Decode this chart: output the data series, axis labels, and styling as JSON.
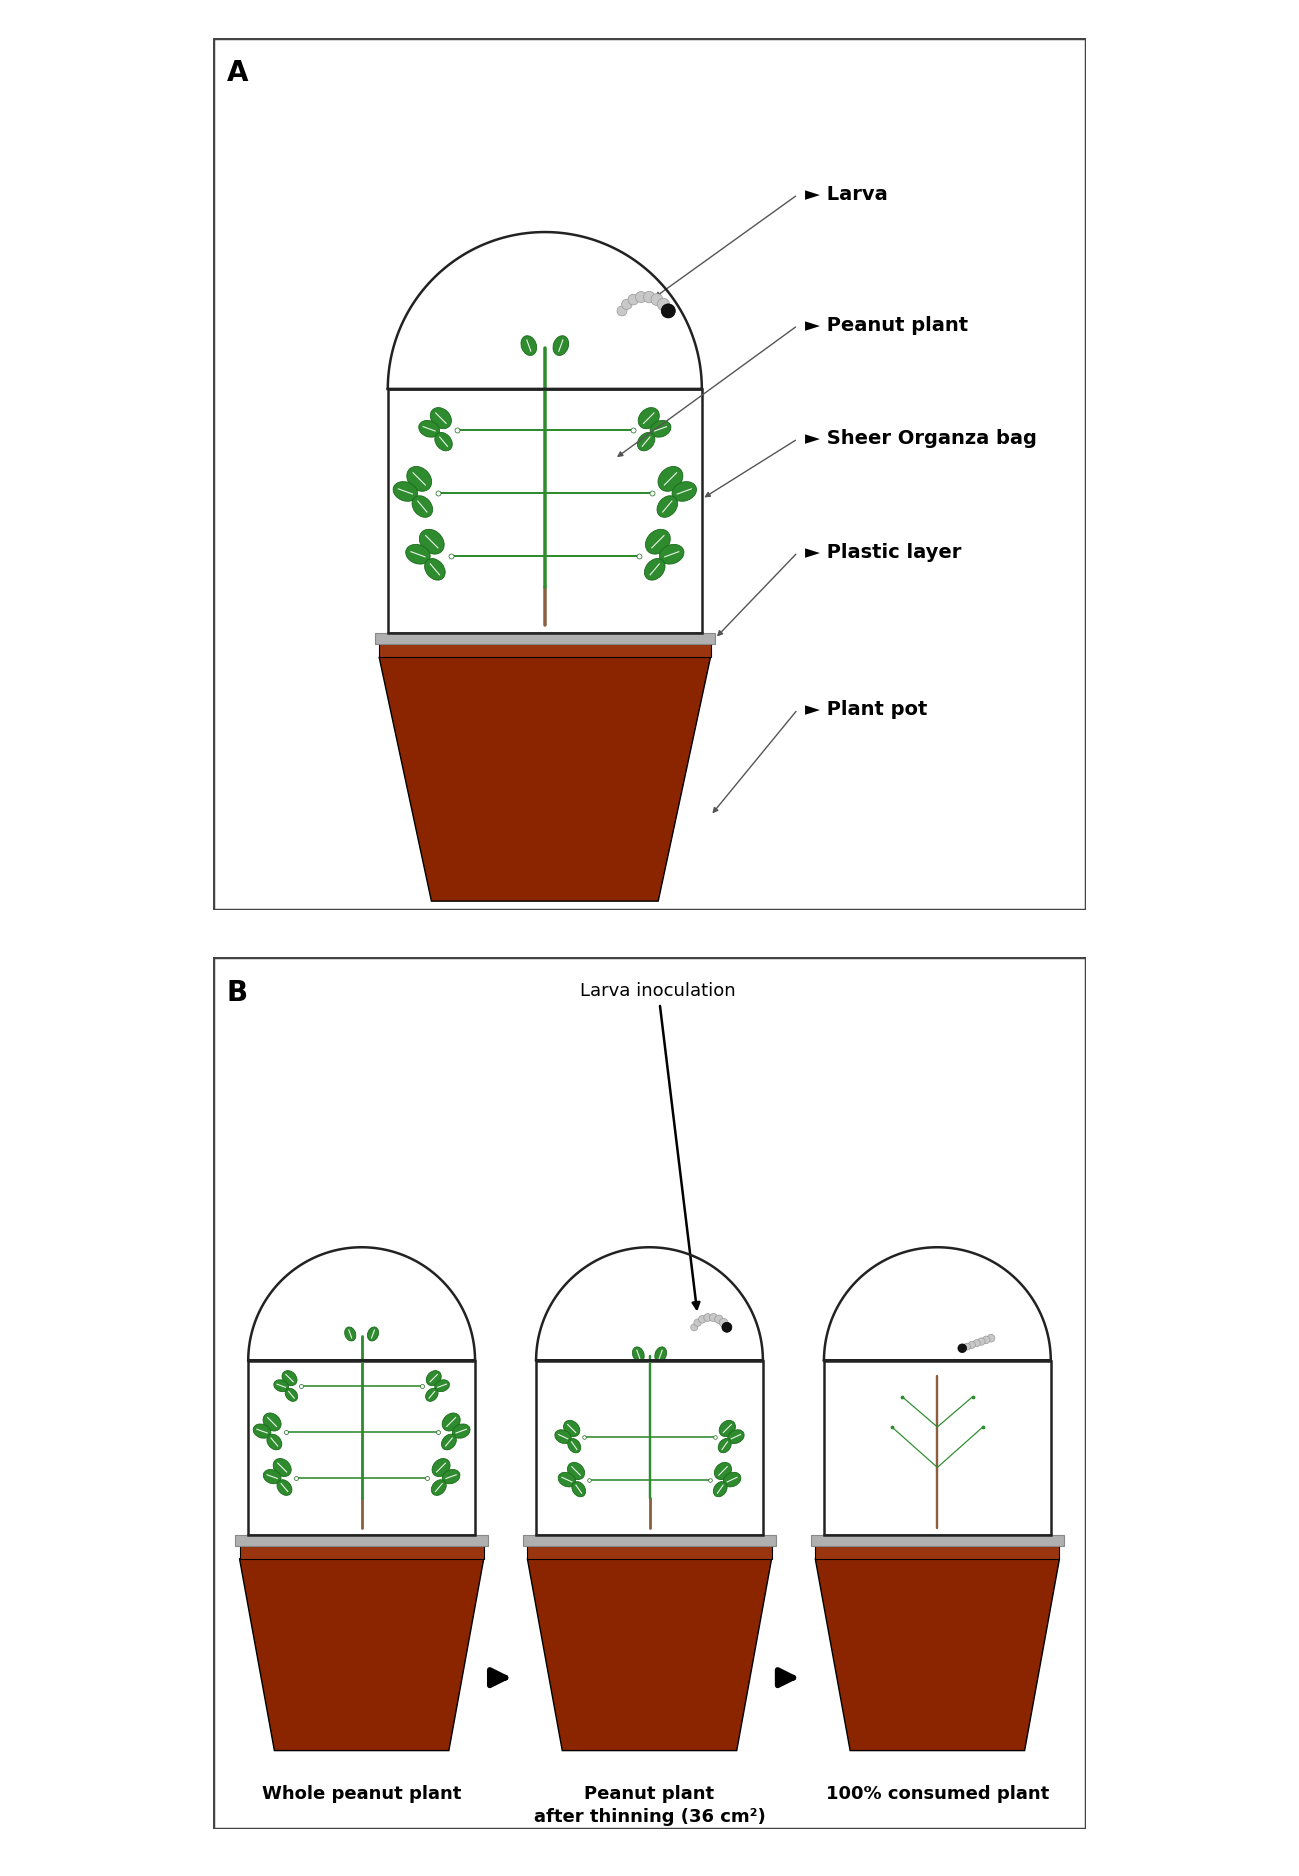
{
  "panel_a_label": "A",
  "panel_b_label": "B",
  "leaf_color": "#2e8b2e",
  "leaf_dark": "#1a6b1a",
  "leaf_light": "#3aab3a",
  "stem_color_green": "#2e8b2e",
  "stem_color_brown": "#8B6040",
  "pot_color": "#8B2500",
  "pot_rim_color": "#9B3510",
  "plastic_color": "#b0b0b0",
  "plastic_edge": "#888888",
  "bag_fill": "#ffffff",
  "bag_edge": "#222222",
  "larva_body": "#c8c8c8",
  "larva_head": "#111111",
  "background": "#ffffff",
  "label_arrow_color": "#555555",
  "black": "#000000",
  "labels_a": [
    "Larva",
    "Peanut plant",
    "Sheer Organza bag",
    "Plastic layer",
    "Plant pot"
  ],
  "label_b_caption": [
    "Whole peanut plant",
    "Peanut plant\nafter thinning (36 cm²)",
    "100% consumed plant"
  ],
  "larva_inoculation": "Larva inoculation",
  "fs_bold": 14,
  "fs_caption": 13
}
